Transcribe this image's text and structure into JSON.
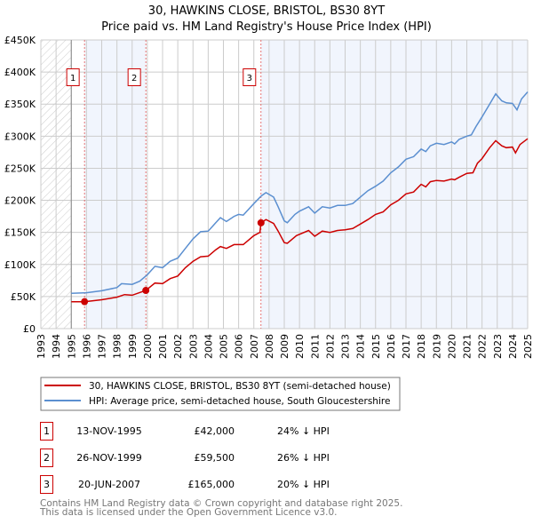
{
  "chart_data": {
    "type": "line",
    "title": [
      "30, HAWKINS CLOSE, BRISTOL, BS30 8YT",
      "Price paid vs. HM Land Registry's House Price Index (HPI)"
    ],
    "xlim": [
      1993,
      2025
    ],
    "ylim": [
      0,
      450000
    ],
    "x_ticks": [
      "1993",
      "1994",
      "1995",
      "1996",
      "1997",
      "1998",
      "1999",
      "2000",
      "2001",
      "2002",
      "2003",
      "2004",
      "2005",
      "2006",
      "2007",
      "2008",
      "2009",
      "2010",
      "2011",
      "2012",
      "2013",
      "2014",
      "2015",
      "2016",
      "2017",
      "2018",
      "2019",
      "2020",
      "2021",
      "2022",
      "2023",
      "2024",
      "2025"
    ],
    "y_ticks": [
      {
        "v": 0,
        "label": "£0"
      },
      {
        "v": 50000,
        "label": "£50K"
      },
      {
        "v": 100000,
        "label": "£100K"
      },
      {
        "v": 150000,
        "label": "£150K"
      },
      {
        "v": 200000,
        "label": "£200K"
      },
      {
        "v": 250000,
        "label": "£250K"
      },
      {
        "v": 300000,
        "label": "£300K"
      },
      {
        "v": 350000,
        "label": "£350K"
      },
      {
        "v": 400000,
        "label": "£400K"
      },
      {
        "v": 450000,
        "label": "£450K"
      }
    ],
    "grid": true,
    "series": [
      {
        "name": "30, HAWKINS CLOSE, BRISTOL, BS30 8YT (semi-detached house)",
        "color": "#cc0000",
        "x": [
          1995,
          1995.87,
          1997,
          1998,
          1998.5,
          1999,
          1999.9,
          2000.5,
          2001,
          2001.5,
          2002,
          2002.5,
          2003,
          2003.5,
          2004,
          2004.5,
          2004.8,
          2005.2,
          2005.7,
          2006.3,
          2007,
          2007.4,
          2007.47,
          2007.8,
          2008.3,
          2008.6,
          2009,
          2009.2,
          2009.8,
          2010.6,
          2011,
          2011.5,
          2012,
          2012.5,
          2013,
          2013.5,
          2014,
          2014.5,
          2015,
          2015.5,
          2016,
          2016.5,
          2017,
          2017.5,
          2018,
          2018.3,
          2018.6,
          2019,
          2019.5,
          2020,
          2020.2,
          2020.5,
          2021,
          2021.4,
          2021.7,
          2022,
          2022.5,
          2022.9,
          2023.3,
          2023.6,
          2024,
          2024.2,
          2024.5,
          2025
        ],
        "y": [
          42000,
          42000,
          45000,
          49000,
          53000,
          52000,
          59500,
          71000,
          70000,
          78000,
          82000,
          95000,
          105000,
          112000,
          113000,
          123000,
          128000,
          125000,
          131000,
          131000,
          145000,
          150000,
          165000,
          170000,
          164000,
          152000,
          134000,
          133000,
          145000,
          153000,
          144000,
          152000,
          150000,
          153000,
          154000,
          156000,
          163000,
          170000,
          178000,
          182000,
          193000,
          200000,
          210000,
          213000,
          225000,
          221000,
          229000,
          231000,
          230000,
          233000,
          232000,
          236000,
          242000,
          243000,
          258000,
          265000,
          282000,
          293000,
          285000,
          282000,
          283000,
          274000,
          287000,
          296000
        ]
      },
      {
        "name": "HPI: Average price, semi-detached house, South Gloucestershire",
        "color": "#5b8fd0",
        "x": [
          1995,
          1996,
          1997,
          1998,
          1998.3,
          1999,
          1999.5,
          2000,
          2000.5,
          2001,
          2001.5,
          2002,
          2002.5,
          2003,
          2003.5,
          2004,
          2004.5,
          2004.8,
          2005.2,
          2005.7,
          2006,
          2006.3,
          2007,
          2007.5,
          2007.8,
          2008.3,
          2008.6,
          2009,
          2009.2,
          2009.7,
          2010,
          2010.6,
          2011,
          2011.5,
          2012,
          2012.5,
          2013,
          2013.5,
          2014,
          2014.5,
          2015,
          2015.5,
          2016,
          2016.5,
          2017,
          2017.5,
          2018,
          2018.3,
          2018.6,
          2019,
          2019.5,
          2020,
          2020.2,
          2020.5,
          2021,
          2021.3,
          2021.6,
          2022,
          2022.5,
          2022.9,
          2023.3,
          2023.6,
          2024,
          2024.3,
          2024.6,
          2025
        ],
        "y": [
          55000,
          56000,
          59000,
          64000,
          70000,
          69000,
          74000,
          84000,
          97000,
          95000,
          105000,
          110000,
          125000,
          140000,
          151000,
          152000,
          165000,
          173000,
          167000,
          175000,
          178000,
          177000,
          195000,
          207000,
          212000,
          205000,
          190000,
          168000,
          165000,
          178000,
          183000,
          190000,
          180000,
          190000,
          188000,
          192000,
          192000,
          195000,
          205000,
          215000,
          222000,
          230000,
          243000,
          252000,
          264000,
          268000,
          280000,
          276000,
          285000,
          289000,
          287000,
          291000,
          288000,
          295000,
          300000,
          302000,
          315000,
          330000,
          350000,
          366000,
          355000,
          352000,
          351000,
          341000,
          358000,
          369000
        ]
      }
    ],
    "shaded_ranges": [
      [
        1995.87,
        1999.9
      ],
      [
        2007.47,
        2025
      ]
    ],
    "hatched_range": [
      1993,
      1995
    ],
    "annotations": [
      {
        "label": "1",
        "x": 1995.87,
        "y": 42000
      },
      {
        "label": "2",
        "x": 1999.9,
        "y": 59500
      },
      {
        "label": "3",
        "x": 2007.47,
        "y": 165000
      }
    ],
    "legend": "below"
  },
  "legend": {
    "property": "30, HAWKINS CLOSE, BRISTOL, BS30 8YT (semi-detached house)",
    "hpi": "HPI: Average price, semi-detached house, South Gloucestershire"
  },
  "transactions": [
    {
      "num": "1",
      "date": "13-NOV-1995",
      "price": "£42,000",
      "diff": "24% ↓ HPI"
    },
    {
      "num": "2",
      "date": "26-NOV-1999",
      "price": "£59,500",
      "diff": "26% ↓ HPI"
    },
    {
      "num": "3",
      "date": "20-JUN-2007",
      "price": "£165,000",
      "diff": "20% ↓ HPI"
    }
  ],
  "footer": [
    "Contains HM Land Registry data © Crown copyright and database right 2025.",
    "This data is licensed under the Open Government Licence v3.0."
  ]
}
